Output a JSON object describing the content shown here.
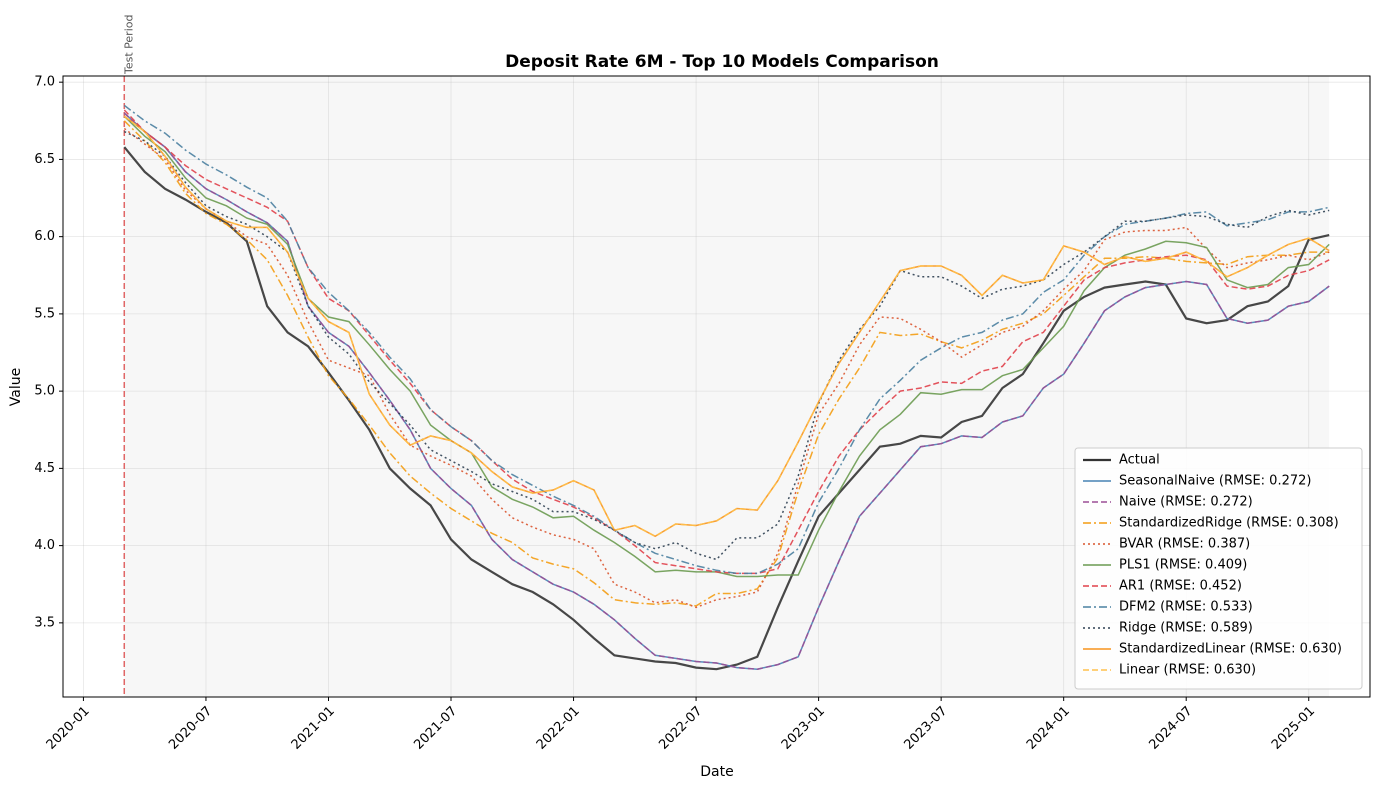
{
  "chart_data": {
    "type": "line",
    "title": "Deposit Rate 6M - Top 10 Models Comparison",
    "xlabel": "Date",
    "ylabel": "Value",
    "annotation": {
      "text": "Test Period",
      "x": "2020-03"
    },
    "x": [
      "2020-03",
      "2020-04",
      "2020-05",
      "2020-06",
      "2020-07",
      "2020-08",
      "2020-09",
      "2020-10",
      "2020-11",
      "2020-12",
      "2021-01",
      "2021-02",
      "2021-03",
      "2021-04",
      "2021-05",
      "2021-06",
      "2021-07",
      "2021-08",
      "2021-09",
      "2021-10",
      "2021-11",
      "2021-12",
      "2022-01",
      "2022-02",
      "2022-03",
      "2022-04",
      "2022-05",
      "2022-06",
      "2022-07",
      "2022-08",
      "2022-09",
      "2022-10",
      "2022-11",
      "2022-12",
      "2023-01",
      "2023-02",
      "2023-03",
      "2023-04",
      "2023-05",
      "2023-06",
      "2023-07",
      "2023-08",
      "2023-09",
      "2023-10",
      "2023-11",
      "2023-12",
      "2024-01",
      "2024-02",
      "2024-03",
      "2024-04",
      "2024-05",
      "2024-06",
      "2024-07",
      "2024-08",
      "2024-09",
      "2024-10",
      "2024-11",
      "2024-12",
      "2025-01",
      "2025-02"
    ],
    "xlim": [
      "2019-12",
      "2025-04"
    ],
    "xticks": [
      "2020-01",
      "2020-07",
      "2021-01",
      "2021-07",
      "2022-01",
      "2022-07",
      "2023-01",
      "2023-07",
      "2024-01",
      "2024-07",
      "2025-01"
    ],
    "ylim": [
      3.02,
      7.04
    ],
    "yticks": [
      3.5,
      {
        "value": 4,
        "label": "4.0"
      },
      4.5,
      {
        "value": 5,
        "label": "5.0"
      },
      5.5,
      {
        "value": 6,
        "label": "6.0"
      },
      6.5,
      {
        "value": 7,
        "label": "7.0"
      }
    ],
    "grid": true,
    "legend": "lower right",
    "series": [
      {
        "name": "Actual",
        "color": "#333333",
        "dash": "solid",
        "width": 2.2,
        "values": [
          6.58,
          6.42,
          6.31,
          6.24,
          6.16,
          6.09,
          5.97,
          5.55,
          5.38,
          5.29,
          5.12,
          4.94,
          4.75,
          4.5,
          4.37,
          4.26,
          4.04,
          3.91,
          3.83,
          3.75,
          3.7,
          3.62,
          3.52,
          3.4,
          3.29,
          3.27,
          3.25,
          3.24,
          3.21,
          3.2,
          3.23,
          3.28,
          3.6,
          3.9,
          4.19,
          4.34,
          4.49,
          4.64,
          4.66,
          4.71,
          4.7,
          4.8,
          4.84,
          5.02,
          5.11,
          5.31,
          5.52,
          5.61,
          5.67,
          5.69,
          5.71,
          5.69,
          5.47,
          5.44,
          5.46,
          5.55,
          5.58,
          5.68,
          5.98,
          6.01
        ]
      },
      {
        "name": "SeasonalNaive (RMSE: 0.272)",
        "color": "#4682b4",
        "dash": "solid",
        "width": 1.5,
        "values": [
          6.8,
          6.68,
          6.58,
          6.42,
          6.31,
          6.24,
          6.16,
          6.09,
          5.97,
          5.55,
          5.38,
          5.29,
          5.12,
          4.94,
          4.75,
          4.5,
          4.37,
          4.26,
          4.04,
          3.91,
          3.83,
          3.75,
          3.7,
          3.62,
          3.52,
          3.4,
          3.29,
          3.27,
          3.25,
          3.24,
          3.21,
          3.2,
          3.23,
          3.28,
          3.6,
          3.9,
          4.19,
          4.34,
          4.49,
          4.64,
          4.66,
          4.71,
          4.7,
          4.8,
          4.84,
          5.02,
          5.11,
          5.31,
          5.52,
          5.61,
          5.67,
          5.69,
          5.71,
          5.69,
          5.47,
          5.44,
          5.46,
          5.55,
          5.58,
          5.68
        ]
      },
      {
        "name": "Naive (RMSE: 0.272)",
        "color": "#9b4f96",
        "dash": "dashed",
        "width": 1.5,
        "values": [
          6.8,
          6.68,
          6.58,
          6.42,
          6.31,
          6.24,
          6.16,
          6.09,
          5.97,
          5.55,
          5.38,
          5.29,
          5.12,
          4.94,
          4.75,
          4.5,
          4.37,
          4.26,
          4.04,
          3.91,
          3.83,
          3.75,
          3.7,
          3.62,
          3.52,
          3.4,
          3.29,
          3.27,
          3.25,
          3.24,
          3.21,
          3.2,
          3.23,
          3.28,
          3.6,
          3.9,
          4.19,
          4.34,
          4.49,
          4.64,
          4.66,
          4.71,
          4.7,
          4.8,
          4.84,
          5.02,
          5.11,
          5.31,
          5.52,
          5.61,
          5.67,
          5.69,
          5.71,
          5.69,
          5.47,
          5.44,
          5.46,
          5.55,
          5.58,
          5.68
        ]
      },
      {
        "name": "StandardizedRidge (RMSE: 0.308)",
        "color": "#f39c12",
        "dash": "dashdot",
        "width": 1.5,
        "values": [
          6.75,
          6.62,
          6.48,
          6.28,
          6.15,
          6.08,
          5.98,
          5.85,
          5.62,
          5.35,
          5.1,
          4.95,
          4.78,
          4.6,
          4.45,
          4.34,
          4.24,
          4.16,
          4.08,
          4.02,
          3.92,
          3.88,
          3.85,
          3.76,
          3.65,
          3.63,
          3.62,
          3.63,
          3.61,
          3.69,
          3.69,
          3.72,
          3.92,
          4.35,
          4.72,
          4.95,
          5.15,
          5.38,
          5.36,
          5.37,
          5.32,
          5.28,
          5.33,
          5.4,
          5.44,
          5.5,
          5.62,
          5.74,
          5.86,
          5.86,
          5.87,
          5.86,
          5.84,
          5.83,
          5.82,
          5.87,
          5.88,
          5.88,
          5.9,
          5.9
        ]
      },
      {
        "name": "BVAR (RMSE: 0.387)",
        "color": "#d9532c",
        "dash": "dotted",
        "width": 1.5,
        "values": [
          6.7,
          6.6,
          6.5,
          6.3,
          6.18,
          6.1,
          6.0,
          5.95,
          5.75,
          5.45,
          5.2,
          5.15,
          5.1,
          4.85,
          4.65,
          4.58,
          4.52,
          4.45,
          4.3,
          4.18,
          4.12,
          4.07,
          4.04,
          3.98,
          3.75,
          3.7,
          3.63,
          3.65,
          3.6,
          3.65,
          3.67,
          3.7,
          3.95,
          4.4,
          4.85,
          5.05,
          5.3,
          5.48,
          5.47,
          5.4,
          5.32,
          5.22,
          5.3,
          5.38,
          5.42,
          5.52,
          5.66,
          5.78,
          5.98,
          6.03,
          6.04,
          6.04,
          6.06,
          5.92,
          5.8,
          5.83,
          5.85,
          5.88,
          5.85,
          5.9
        ]
      },
      {
        "name": "PLS1 (RMSE: 0.409)",
        "color": "#6a9a50",
        "dash": "solid",
        "width": 1.5,
        "values": [
          6.78,
          6.65,
          6.55,
          6.38,
          6.25,
          6.2,
          6.12,
          6.08,
          5.95,
          5.6,
          5.48,
          5.45,
          5.3,
          5.14,
          5.0,
          4.78,
          4.68,
          4.6,
          4.38,
          4.3,
          4.25,
          4.18,
          4.19,
          4.1,
          4.02,
          3.93,
          3.83,
          3.84,
          3.83,
          3.83,
          3.8,
          3.8,
          3.81,
          3.81,
          4.1,
          4.35,
          4.58,
          4.75,
          4.85,
          4.99,
          4.98,
          5.01,
          5.01,
          5.1,
          5.14,
          5.28,
          5.42,
          5.65,
          5.8,
          5.88,
          5.92,
          5.97,
          5.96,
          5.93,
          5.72,
          5.67,
          5.69,
          5.8,
          5.82,
          5.95
        ]
      },
      {
        "name": "AR1 (RMSE: 0.452)",
        "color": "#e0404a",
        "dash": "dashed",
        "width": 1.5,
        "values": [
          6.82,
          6.68,
          6.58,
          6.46,
          6.37,
          6.31,
          6.25,
          6.19,
          6.1,
          5.8,
          5.6,
          5.52,
          5.36,
          5.2,
          5.05,
          4.88,
          4.77,
          4.68,
          4.55,
          4.43,
          4.35,
          4.3,
          4.25,
          4.18,
          4.1,
          4.0,
          3.89,
          3.87,
          3.85,
          3.83,
          3.82,
          3.82,
          3.85,
          4.1,
          4.35,
          4.58,
          4.75,
          4.88,
          5.0,
          5.02,
          5.06,
          5.05,
          5.13,
          5.16,
          5.32,
          5.38,
          5.55,
          5.72,
          5.8,
          5.83,
          5.85,
          5.87,
          5.88,
          5.85,
          5.68,
          5.66,
          5.68,
          5.75,
          5.78,
          5.85
        ]
      },
      {
        "name": "DFM2 (RMSE: 0.533)",
        "color": "#4a80a0",
        "dash": "dashdot",
        "width": 1.5,
        "values": [
          6.85,
          6.75,
          6.67,
          6.56,
          6.47,
          6.4,
          6.32,
          6.25,
          6.1,
          5.8,
          5.64,
          5.52,
          5.38,
          5.22,
          5.08,
          4.88,
          4.77,
          4.68,
          4.55,
          4.46,
          4.39,
          4.32,
          4.26,
          4.19,
          4.1,
          4.02,
          3.95,
          3.91,
          3.87,
          3.84,
          3.82,
          3.82,
          3.88,
          3.98,
          4.28,
          4.5,
          4.75,
          4.95,
          5.07,
          5.2,
          5.28,
          5.35,
          5.38,
          5.46,
          5.5,
          5.64,
          5.72,
          5.88,
          6.0,
          6.08,
          6.1,
          6.12,
          6.15,
          6.16,
          6.07,
          6.09,
          6.11,
          6.16,
          6.16,
          6.19
        ]
      },
      {
        "name": "Ridge (RMSE: 0.589)",
        "color": "#2c3e50",
        "dash": "dotted",
        "width": 1.5,
        "values": [
          6.68,
          6.62,
          6.52,
          6.35,
          6.2,
          6.13,
          6.08,
          6.0,
          5.9,
          5.55,
          5.35,
          5.24,
          5.06,
          4.92,
          4.78,
          4.62,
          4.55,
          4.48,
          4.4,
          4.35,
          4.3,
          4.22,
          4.22,
          4.17,
          4.1,
          4.02,
          3.98,
          4.02,
          3.95,
          3.91,
          4.05,
          4.05,
          4.14,
          4.45,
          4.92,
          5.2,
          5.4,
          5.55,
          5.78,
          5.74,
          5.74,
          5.68,
          5.6,
          5.66,
          5.68,
          5.72,
          5.82,
          5.9,
          6.0,
          6.1,
          6.1,
          6.12,
          6.14,
          6.13,
          6.08,
          6.06,
          6.13,
          6.17,
          6.14,
          6.17
        ]
      },
      {
        "name": "StandardizedLinear (RMSE: 0.630)",
        "color": "#f7941d",
        "dash": "solid",
        "width": 1.5,
        "values": [
          6.78,
          6.68,
          6.52,
          6.32,
          6.18,
          6.1,
          6.06,
          6.06,
          5.9,
          5.6,
          5.45,
          5.38,
          4.98,
          4.78,
          4.65,
          4.71,
          4.68,
          4.6,
          4.48,
          4.38,
          4.34,
          4.36,
          4.42,
          4.36,
          4.1,
          4.13,
          4.06,
          4.14,
          4.13,
          4.16,
          4.24,
          4.23,
          4.42,
          4.67,
          4.93,
          5.18,
          5.38,
          5.58,
          5.78,
          5.81,
          5.81,
          5.75,
          5.62,
          5.75,
          5.7,
          5.72,
          5.94,
          5.9,
          5.82,
          5.87,
          5.84,
          5.86,
          5.9,
          5.84,
          5.74,
          5.8,
          5.88,
          5.95,
          5.99,
          5.91
        ]
      },
      {
        "name": "Linear (RMSE: 0.630)",
        "color": "#ffc04d",
        "dash": "dashed",
        "width": 1.5,
        "values": [
          6.78,
          6.68,
          6.52,
          6.32,
          6.18,
          6.1,
          6.06,
          6.06,
          5.9,
          5.6,
          5.45,
          5.38,
          4.98,
          4.78,
          4.65,
          4.71,
          4.68,
          4.6,
          4.48,
          4.38,
          4.34,
          4.36,
          4.42,
          4.36,
          4.1,
          4.13,
          4.06,
          4.14,
          4.13,
          4.16,
          4.24,
          4.23,
          4.42,
          4.67,
          4.93,
          5.18,
          5.38,
          5.58,
          5.78,
          5.81,
          5.81,
          5.75,
          5.62,
          5.75,
          5.7,
          5.72,
          5.94,
          5.9,
          5.82,
          5.87,
          5.84,
          5.86,
          5.9,
          5.84,
          5.74,
          5.8,
          5.88,
          5.95,
          5.99,
          5.91
        ]
      }
    ]
  }
}
